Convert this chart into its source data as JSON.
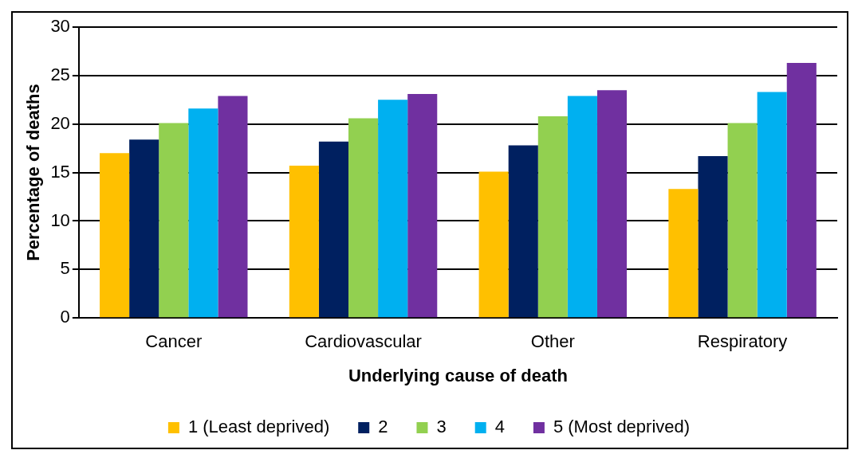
{
  "chart_data": {
    "type": "bar",
    "categories": [
      "Cancer",
      "Cardiovascular",
      "Other",
      "Respiratory"
    ],
    "xlabel": "Underlying cause of death",
    "ylabel": "Percentage of deaths",
    "series": [
      {
        "name": "1 (Least deprived)",
        "color": "#ffc000",
        "values": [
          17.0,
          15.7,
          15.1,
          13.3
        ]
      },
      {
        "name": "2",
        "color": "#002060",
        "values": [
          18.4,
          18.2,
          17.8,
          16.7
        ]
      },
      {
        "name": "3",
        "color": "#92d050",
        "values": [
          20.1,
          20.6,
          20.8,
          20.1
        ]
      },
      {
        "name": "4",
        "color": "#00b0f0",
        "values": [
          21.6,
          22.5,
          22.9,
          23.3
        ]
      },
      {
        "name": "5 (Most deprived)",
        "color": "#7030a0",
        "values": [
          22.9,
          23.1,
          23.5,
          26.3
        ]
      }
    ],
    "ylim": [
      0,
      30
    ],
    "yticks": [
      0,
      5,
      10,
      15,
      20,
      25,
      30
    ],
    "grid": "y",
    "legend": "bottom"
  }
}
